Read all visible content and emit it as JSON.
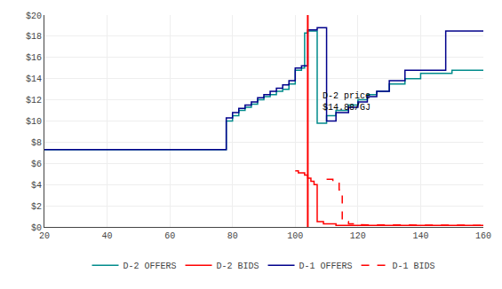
{
  "chart_data": {
    "type": "line",
    "xlim": [
      20,
      160
    ],
    "ylim": [
      0,
      20
    ],
    "xticks": [
      20,
      40,
      60,
      80,
      100,
      120,
      140,
      160
    ],
    "yticks": [
      {
        "value": 0,
        "label": "$0"
      },
      {
        "value": 2,
        "label": "$2"
      },
      {
        "value": 4,
        "label": "$4"
      },
      {
        "value": 6,
        "label": "$6"
      },
      {
        "value": 8,
        "label": "$8"
      },
      {
        "value": 10,
        "label": "$10"
      },
      {
        "value": 12,
        "label": "$12"
      },
      {
        "value": 14,
        "label": "$14"
      },
      {
        "value": 16,
        "label": "$16"
      },
      {
        "value": 18,
        "label": "$18"
      },
      {
        "value": 20,
        "label": "$20"
      }
    ],
    "grid": true,
    "legend": "bottom",
    "series": [
      {
        "name": "D-2 OFFERS",
        "color": "#008B8B",
        "line_style": "solid",
        "x": [
          20,
          78,
          78,
          80,
          80,
          82,
          82,
          84,
          84,
          86,
          86,
          88,
          88,
          90,
          90,
          92,
          92,
          94,
          94,
          96,
          96,
          98,
          98,
          100,
          100,
          102,
          102,
          103,
          103,
          104,
          104,
          107,
          107,
          110,
          110,
          113,
          113,
          117,
          117,
          120,
          120,
          123,
          123,
          126,
          126,
          130,
          130,
          135,
          135,
          140,
          140,
          150,
          150,
          160
        ],
        "values": [
          7.3,
          7.3,
          10.0,
          10.0,
          10.5,
          10.5,
          11.0,
          11.0,
          11.3,
          11.3,
          11.6,
          11.6,
          12.0,
          12.0,
          12.3,
          12.3,
          12.5,
          12.5,
          12.8,
          12.8,
          13.0,
          13.0,
          13.5,
          13.5,
          14.8,
          14.8,
          15.0,
          15.0,
          18.3,
          18.3,
          18.5,
          18.5,
          9.8,
          9.8,
          10.5,
          10.5,
          11.0,
          11.0,
          11.5,
          11.5,
          12.0,
          12.0,
          12.5,
          12.5,
          12.8,
          12.8,
          13.5,
          13.5,
          14.0,
          14.0,
          14.5,
          14.5,
          14.8,
          14.8
        ]
      },
      {
        "name": "D-2 BIDS",
        "color": "#FF0000",
        "line_style": "solid",
        "x": [
          100,
          101,
          101,
          103,
          103,
          104,
          104,
          105,
          105,
          106,
          106,
          107,
          107,
          109,
          109,
          113,
          113,
          160
        ],
        "values": [
          5.3,
          5.3,
          5.1,
          5.1,
          4.9,
          4.9,
          4.6,
          4.6,
          4.3,
          4.3,
          4.0,
          4.0,
          0.5,
          0.5,
          0.3,
          0.3,
          0.15,
          0.15
        ]
      },
      {
        "name": "D-1 OFFERS",
        "color": "#00008B",
        "line_style": "solid",
        "x": [
          20,
          78,
          78,
          80,
          80,
          82,
          82,
          84,
          84,
          86,
          86,
          88,
          88,
          90,
          90,
          92,
          92,
          94,
          94,
          96,
          96,
          98,
          98,
          100,
          100,
          102,
          102,
          104,
          104,
          107,
          107,
          110,
          110,
          113,
          113,
          117,
          117,
          120,
          120,
          123,
          123,
          126,
          126,
          130,
          130,
          135,
          135,
          148,
          148,
          155,
          155,
          160
        ],
        "values": [
          7.3,
          7.3,
          10.3,
          10.3,
          10.8,
          10.8,
          11.2,
          11.2,
          11.5,
          11.5,
          11.8,
          11.8,
          12.2,
          12.2,
          12.5,
          12.5,
          12.8,
          12.8,
          13.1,
          13.1,
          13.4,
          13.4,
          13.8,
          13.8,
          15.0,
          15.0,
          15.2,
          15.2,
          18.6,
          18.6,
          18.8,
          18.8,
          10.0,
          10.0,
          10.8,
          10.8,
          11.3,
          11.3,
          11.8,
          11.8,
          12.3,
          12.3,
          12.8,
          12.8,
          13.8,
          13.8,
          14.8,
          14.8,
          18.5,
          18.5,
          18.5,
          18.5
        ]
      },
      {
        "name": "D-1 BIDS",
        "color": "#FF0000",
        "line_style": "dashed",
        "x": [
          110,
          112,
          112,
          114,
          114,
          115,
          115,
          117,
          117,
          120,
          120,
          130,
          130,
          160
        ],
        "values": [
          4.5,
          4.5,
          4.2,
          4.2,
          3.5,
          3.5,
          0.5,
          0.5,
          0.3,
          0.3,
          0.2,
          0.2,
          0.15,
          0.15
        ]
      }
    ],
    "vlines": [
      {
        "x": 104,
        "color": "red"
      }
    ],
    "annotations": [
      {
        "text": "D-2 price\n$14.88/GJ",
        "x": 108,
        "y": 13.0
      }
    ]
  }
}
